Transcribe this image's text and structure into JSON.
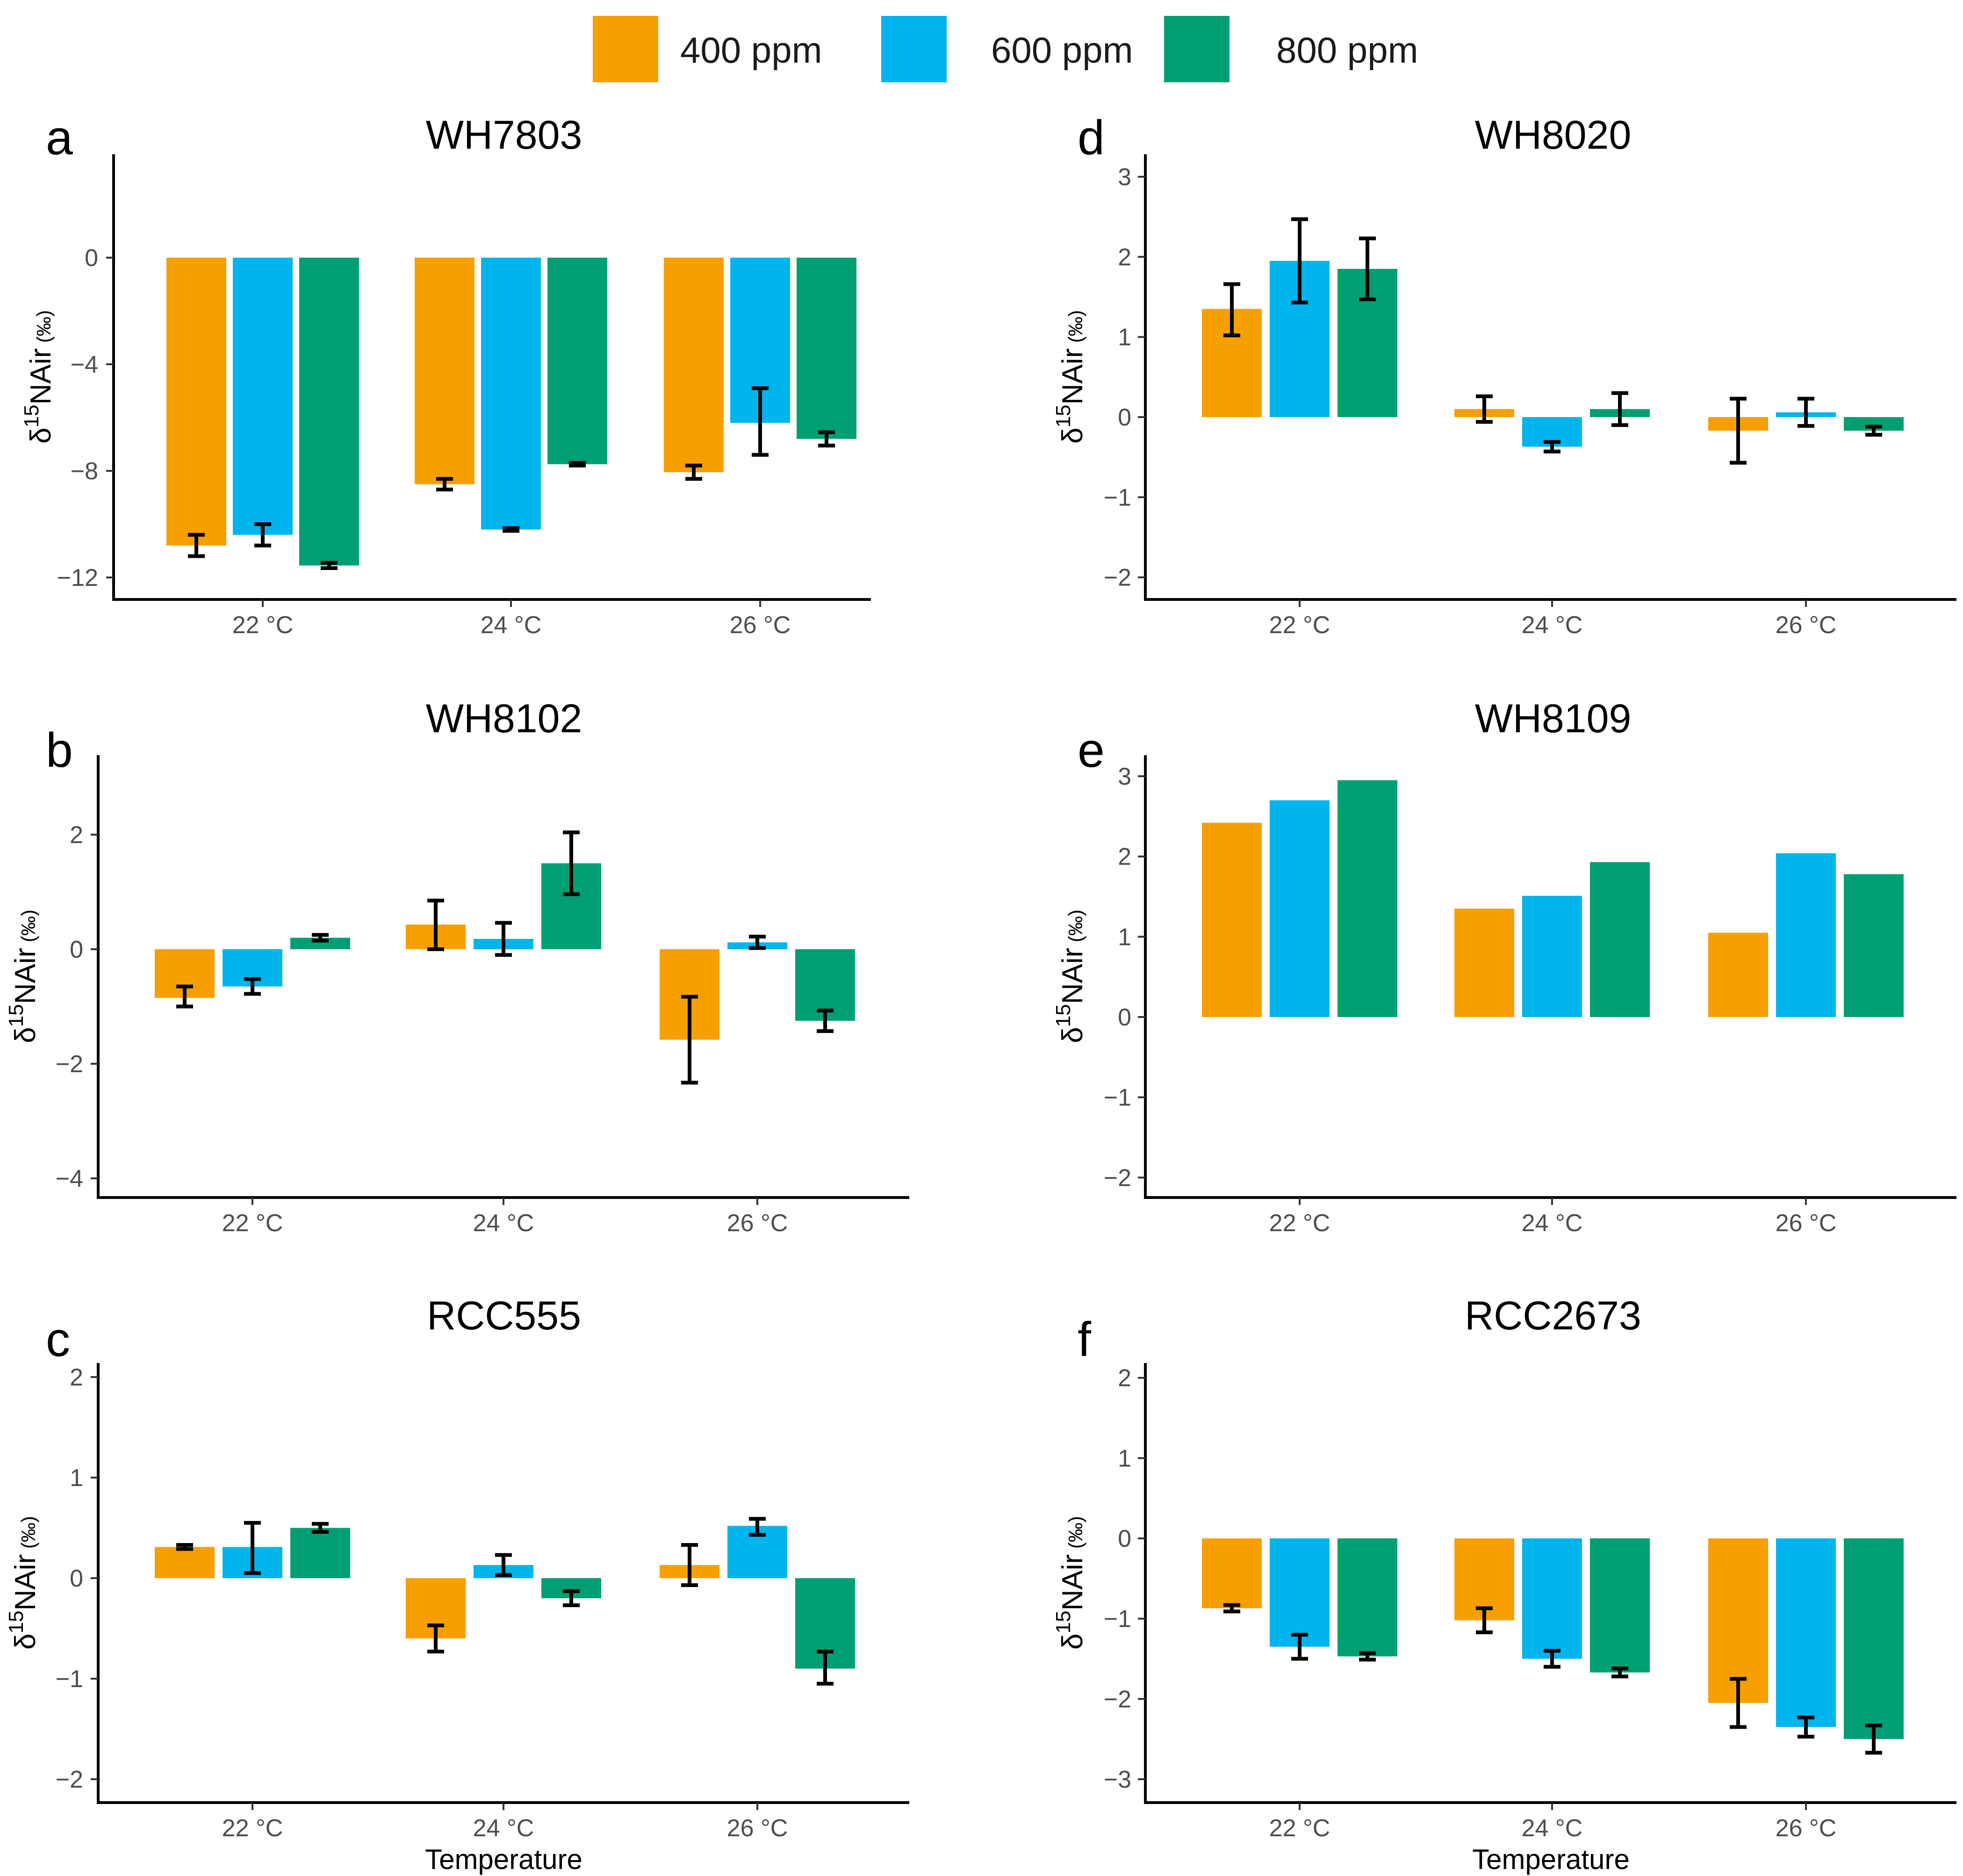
{
  "colors": {
    "400 ppm": "#F79F00",
    "600 ppm": "#00B4EC",
    "800 ppm": "#009F73"
  },
  "legend": [
    "400 ppm",
    "600 ppm",
    "800 ppm"
  ],
  "y_label": {
    "delta": "δ",
    "sup": "15",
    "base": "NAir",
    "unit": " (‰)"
  },
  "x_axis_label": "Temperature",
  "chart_data": [
    {
      "type": "bar",
      "letter": "a",
      "title": "WH7803",
      "categories": [
        "22 °C",
        "24 °C",
        "26 °C"
      ],
      "ylim": [
        -12.8,
        4.0
      ],
      "yticks": [
        -12,
        -8,
        -4,
        0
      ],
      "ytick_labels": [
        "−12",
        "−8",
        "−4",
        "0"
      ],
      "series": [
        {
          "name": "400 ppm",
          "values": [
            -10.8,
            -8.5,
            -8.05
          ],
          "err_low": [
            -11.2,
            -8.7,
            -8.3
          ],
          "err_high": [
            -10.4,
            -8.3,
            -7.8
          ]
        },
        {
          "name": "600 ppm",
          "values": [
            -10.4,
            -10.2,
            -6.2
          ],
          "err_low": [
            -10.8,
            -10.25,
            -7.4
          ],
          "err_high": [
            -10.0,
            -10.15,
            -4.9
          ]
        },
        {
          "name": "800 ppm",
          "values": [
            -11.55,
            -7.75,
            -6.8
          ],
          "err_low": [
            -11.65,
            -7.8,
            -7.05
          ],
          "err_high": [
            -11.45,
            -7.7,
            -6.55
          ]
        }
      ],
      "xlabel": ""
    },
    {
      "type": "bar",
      "letter": "b",
      "title": "WH8102",
      "categories": [
        "22 °C",
        "24 °C",
        "26 °C"
      ],
      "ylim": [
        -4.4,
        3.2
      ],
      "yticks": [
        -4,
        -2,
        0,
        2
      ],
      "ytick_labels": [
        "−4",
        "−2",
        "0",
        "2"
      ],
      "series": [
        {
          "name": "400 ppm",
          "values": [
            -0.85,
            0.43,
            -1.58
          ],
          "err_low": [
            -1.0,
            0.0,
            -2.33
          ],
          "err_high": [
            -0.65,
            0.85,
            -0.83
          ]
        },
        {
          "name": "600 ppm",
          "values": [
            -0.65,
            0.18,
            0.12
          ],
          "err_low": [
            -0.78,
            -0.1,
            0.02
          ],
          "err_high": [
            -0.52,
            0.46,
            0.22
          ]
        },
        {
          "name": "800 ppm",
          "values": [
            0.2,
            1.5,
            -1.25
          ],
          "err_low": [
            0.15,
            0.96,
            -1.43
          ],
          "err_high": [
            0.25,
            2.04,
            -1.07
          ]
        }
      ],
      "xlabel": ""
    },
    {
      "type": "bar",
      "letter": "c",
      "title": "RCC555",
      "categories": [
        "22 °C",
        "24 °C",
        "26 °C"
      ],
      "ylim": [
        -2.2,
        2.25
      ],
      "yticks": [
        -2,
        -1,
        0,
        1,
        2
      ],
      "ytick_labels": [
        "−2",
        "−1",
        "0",
        "1",
        "2"
      ],
      "series": [
        {
          "name": "400 ppm",
          "values": [
            0.31,
            -0.6,
            0.13
          ],
          "err_low": [
            0.29,
            -0.73,
            -0.07
          ],
          "err_high": [
            0.33,
            -0.47,
            0.33
          ]
        },
        {
          "name": "600 ppm",
          "values": [
            0.31,
            0.13,
            0.52
          ],
          "err_low": [
            0.05,
            0.03,
            0.43
          ],
          "err_high": [
            0.55,
            0.23,
            0.59
          ]
        },
        {
          "name": "800 ppm",
          "values": [
            0.5,
            -0.2,
            -0.9
          ],
          "err_low": [
            0.46,
            -0.27,
            -1.05
          ],
          "err_high": [
            0.54,
            -0.13,
            -0.73
          ]
        }
      ],
      "xlabel": "Temperature"
    },
    {
      "type": "bar",
      "letter": "d",
      "title": "WH8020",
      "categories": [
        "22 °C",
        "24 °C",
        "26 °C"
      ],
      "ylim": [
        -2.2,
        3.1
      ],
      "yticks": [
        -2,
        -1,
        0,
        1,
        2,
        3
      ],
      "ytick_labels": [
        "−2",
        "−1",
        "0",
        "1",
        "2",
        "3"
      ],
      "series": [
        {
          "name": "400 ppm",
          "values": [
            1.35,
            0.1,
            -0.17
          ],
          "err_low": [
            1.02,
            -0.06,
            -0.57
          ],
          "err_high": [
            1.66,
            0.26,
            0.23
          ]
        },
        {
          "name": "600 ppm",
          "values": [
            1.95,
            -0.37,
            0.06
          ],
          "err_low": [
            1.43,
            -0.43,
            -0.11
          ],
          "err_high": [
            2.47,
            -0.31,
            0.23
          ]
        },
        {
          "name": "800 ppm",
          "values": [
            1.85,
            0.1,
            -0.17
          ],
          "err_low": [
            1.47,
            -0.1,
            -0.22
          ],
          "err_high": [
            2.23,
            0.3,
            -0.12
          ]
        }
      ],
      "xlabel": ""
    },
    {
      "type": "bar",
      "letter": "e",
      "title": "WH8109",
      "categories": [
        "22 °C",
        "24 °C",
        "26 °C"
      ],
      "ylim": [
        -2.2,
        3.1
      ],
      "yticks": [
        -2,
        -1,
        0,
        1,
        2,
        3
      ],
      "ytick_labels": [
        "−2",
        "−1",
        "0",
        "1",
        "2",
        "3"
      ],
      "series": [
        {
          "name": "400 ppm",
          "values": [
            2.42,
            1.35,
            1.05
          ]
        },
        {
          "name": "600 ppm",
          "values": [
            2.7,
            1.51,
            2.04
          ]
        },
        {
          "name": "800 ppm",
          "values": [
            2.95,
            1.93,
            1.78
          ]
        }
      ],
      "xlabel": ""
    },
    {
      "type": "bar",
      "letter": "f",
      "title": "RCC2673",
      "categories": [
        "22 °C",
        "24 °C",
        "26 °C"
      ],
      "ylim": [
        -3.25,
        2.25
      ],
      "yticks": [
        -3,
        -2,
        -1,
        0,
        1,
        2
      ],
      "ytick_labels": [
        "−3",
        "−2",
        "−1",
        "0",
        "1",
        "2"
      ],
      "series": [
        {
          "name": "400 ppm",
          "values": [
            -0.87,
            -1.02,
            -2.05
          ],
          "err_low": [
            -0.91,
            -1.17,
            -2.35
          ],
          "err_high": [
            -0.83,
            -0.87,
            -1.75
          ]
        },
        {
          "name": "600 ppm",
          "values": [
            -1.35,
            -1.5,
            -2.35
          ],
          "err_low": [
            -1.5,
            -1.6,
            -2.47
          ],
          "err_high": [
            -1.2,
            -1.4,
            -2.23
          ]
        },
        {
          "name": "800 ppm",
          "values": [
            -1.47,
            -1.67,
            -2.5
          ],
          "err_low": [
            -1.51,
            -1.72,
            -2.67
          ],
          "err_high": [
            -1.43,
            -1.62,
            -2.33
          ]
        }
      ],
      "xlabel": "Temperature"
    }
  ]
}
